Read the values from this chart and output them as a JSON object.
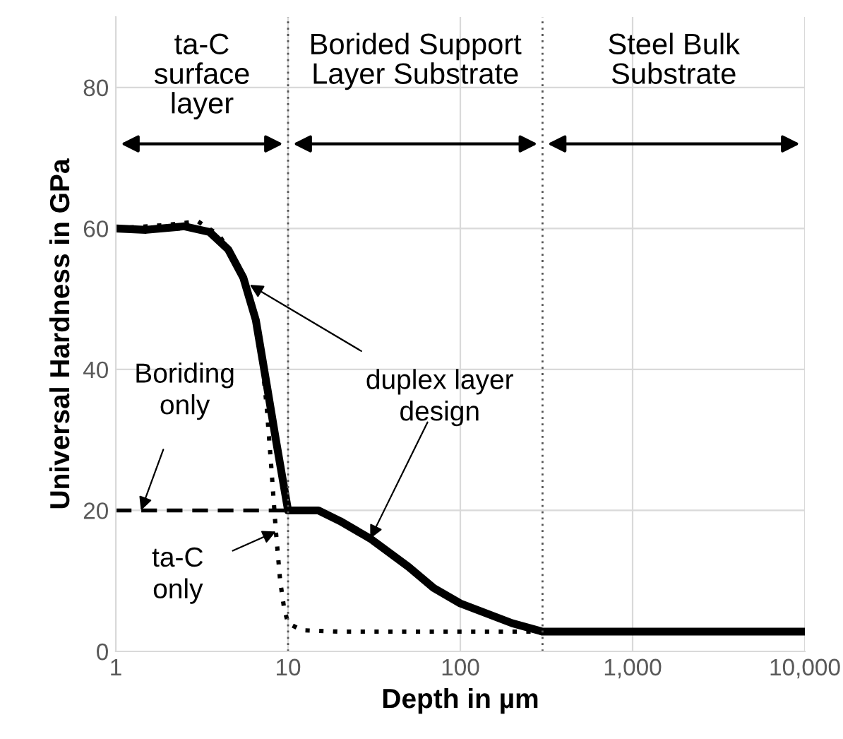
{
  "chart_data": {
    "type": "line",
    "xlabel": "Depth in µm",
    "ylabel": "Universal Hardness in GPa",
    "log": "x",
    "xlim": [
      1,
      10000
    ],
    "xticks": [
      1,
      10,
      100,
      {
        "value": 1000,
        "label": "1,000"
      },
      {
        "value": 10000,
        "label": "10,000"
      }
    ],
    "ylim": [
      0,
      90
    ],
    "yticks": [
      0,
      20,
      40,
      60,
      80
    ],
    "grid": true,
    "legend": false,
    "series": [
      {
        "color": "#000000",
        "line_style": "solid",
        "x": [
          1,
          1.5,
          2.5,
          3.5,
          4.5,
          5.5,
          6.5,
          7.5,
          8.5,
          10,
          15,
          20,
          30,
          50,
          70,
          100,
          200,
          300,
          10000
        ],
        "values": [
          60,
          59.8,
          60.3,
          59.5,
          57,
          53,
          47,
          38,
          30,
          20,
          20,
          18.5,
          16,
          12,
          9,
          6.8,
          4,
          2.8,
          2.8
        ]
      },
      {
        "color": "#000000",
        "line_style": "dashed",
        "x": [
          1,
          10
        ],
        "values": [
          20,
          20
        ]
      },
      {
        "color": "#000000",
        "line_style": "dotted",
        "x": [
          1,
          2,
          3,
          4,
          5,
          6,
          7,
          7.5,
          8,
          8.5,
          9,
          9.5,
          10,
          12,
          20,
          300
        ],
        "values": [
          60,
          60.5,
          61,
          59,
          55,
          50,
          42,
          35,
          26,
          17,
          10,
          6,
          4,
          3,
          2.8,
          2.8
        ]
      }
    ],
    "ref_lines": [
      {
        "axis": "x",
        "value": 10,
        "color": "#555555",
        "line_style": "dotted"
      },
      {
        "axis": "x",
        "value": 300,
        "color": "#555555",
        "line_style": "dotted"
      }
    ],
    "annotations": [
      "ta-C\nsurface\nlayer",
      "Borided Support\nLayer Substrate",
      "Steel Bulk\nSubstrate",
      {
        "text": "duplex layer\ndesign",
        "x": 6,
        "y": 52
      },
      {
        "text": "Boriding\nonly",
        "x": 1.4,
        "y": 20
      },
      {
        "text": "ta-C\nonly",
        "x": 8.5,
        "y": 17
      }
    ]
  }
}
